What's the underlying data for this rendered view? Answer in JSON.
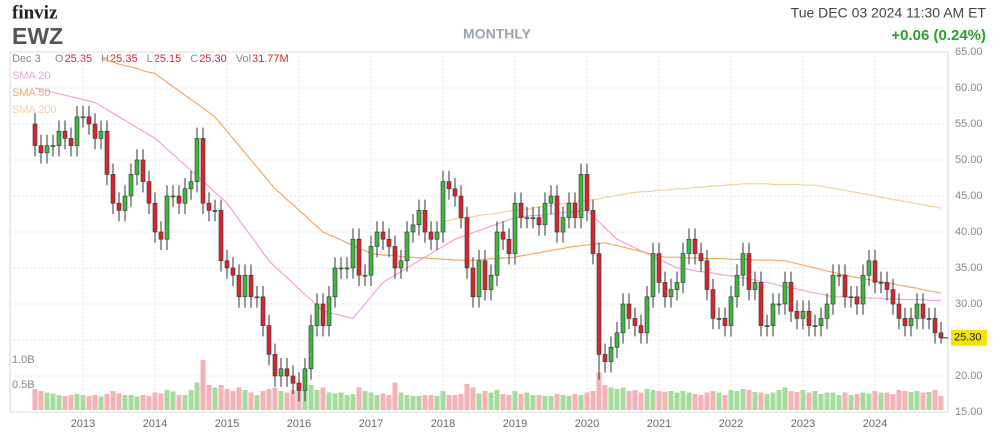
{
  "chart_data": {
    "type": "candlestick",
    "brand": "finviz",
    "ticker": "EWZ",
    "timeframe": "MONTHLY",
    "datetime": "Tue DEC 03 2024 11:30 AM ET",
    "change": "+0.06 (0.24%)",
    "quote": {
      "date": "Dec 3",
      "items": [
        {
          "label": "O",
          "value": 25.35
        },
        {
          "label": "H",
          "value": 25.35
        },
        {
          "label": "L",
          "value": 25.15
        },
        {
          "label": "C",
          "value": 25.3,
          "value_label": "25.30"
        },
        {
          "label": "Vol",
          "value": "31.77M"
        }
      ]
    },
    "last_price": {
      "value": 25.3,
      "label": "25.30"
    },
    "up_color": "#3fb63f",
    "down_color": "#d9262d",
    "up_volume_color": "#a6dc9b",
    "down_volume_color": "#f4b1b6",
    "grid": true,
    "categories": [
      null,
      null,
      null,
      null,
      null,
      null,
      null,
      null,
      "2013",
      null,
      null,
      null,
      null,
      null,
      null,
      null,
      null,
      null,
      null,
      null,
      "2014",
      null,
      null,
      null,
      null,
      null,
      null,
      null,
      null,
      null,
      null,
      null,
      "2015",
      null,
      null,
      null,
      null,
      null,
      null,
      null,
      null,
      null,
      null,
      null,
      "2016",
      null,
      null,
      null,
      null,
      null,
      null,
      null,
      null,
      null,
      null,
      null,
      "2017",
      null,
      null,
      null,
      null,
      null,
      null,
      null,
      null,
      null,
      null,
      null,
      "2018",
      null,
      null,
      null,
      null,
      null,
      null,
      null,
      null,
      null,
      null,
      null,
      "2019",
      null,
      null,
      null,
      null,
      null,
      null,
      null,
      null,
      null,
      null,
      null,
      "2020",
      null,
      null,
      null,
      null,
      null,
      null,
      null,
      null,
      null,
      null,
      null,
      "2021",
      null,
      null,
      null,
      null,
      null,
      null,
      null,
      null,
      null,
      null,
      null,
      "2022",
      null,
      null,
      null,
      null,
      null,
      null,
      null,
      null,
      null,
      null,
      null,
      "2023",
      null,
      null,
      null,
      null,
      null,
      null,
      null,
      null,
      null,
      null,
      null,
      "2024",
      null,
      null,
      null,
      null,
      null,
      null,
      null,
      null,
      null,
      null,
      null
    ],
    "open": [
      55,
      52,
      51,
      52,
      52,
      54,
      53,
      52,
      56,
      56,
      55,
      53,
      54,
      48,
      44,
      43,
      45,
      48,
      50,
      47,
      44,
      40,
      39,
      45,
      45,
      44,
      46,
      47,
      53,
      44,
      43,
      43,
      36,
      35,
      34,
      31,
      34,
      31,
      31,
      27,
      23,
      20,
      21,
      20,
      19,
      18,
      21,
      27,
      30,
      27,
      31,
      35,
      35,
      35,
      39,
      34,
      34,
      38,
      40,
      39,
      38,
      35,
      36,
      40,
      41,
      43,
      40,
      39,
      40,
      47,
      46,
      45,
      42,
      35,
      31,
      36,
      32,
      34,
      40,
      39,
      37,
      44,
      42,
      42,
      42,
      41,
      44,
      45,
      40,
      42,
      44,
      42,
      48,
      43,
      37,
      23,
      22,
      24,
      26,
      30,
      28,
      27,
      26,
      31,
      37,
      33,
      31,
      32,
      33,
      37,
      39,
      37,
      36,
      32,
      28,
      28,
      27,
      31,
      34,
      37,
      32,
      33,
      27,
      27,
      30,
      30,
      33,
      29,
      28,
      29,
      27,
      27,
      28,
      30,
      34,
      34,
      31,
      31,
      30,
      34,
      36,
      33,
      33,
      32,
      30,
      28,
      27,
      28,
      30,
      28,
      28,
      26
    ],
    "high": [
      56.5,
      53.5,
      53.5,
      53.5,
      55.5,
      55.5,
      54.5,
      57.5,
      57.5,
      57.5,
      56.5,
      55.5,
      55.5,
      49.5,
      45.5,
      46.5,
      49.5,
      51.5,
      51.5,
      48.5,
      45.5,
      41.5,
      46.5,
      46.5,
      46.5,
      47.5,
      48.5,
      54.5,
      54.5,
      45.5,
      44.5,
      44.5,
      37.5,
      36.5,
      35.5,
      35.5,
      35.5,
      32.5,
      32.5,
      28.5,
      24.5,
      22.5,
      22.5,
      21.5,
      20.5,
      22.5,
      28.5,
      31.5,
      31.5,
      32.5,
      36.5,
      36.5,
      36.5,
      40.5,
      40.5,
      35.5,
      39.5,
      41.5,
      41.5,
      40.5,
      39.5,
      37.5,
      41.5,
      42.5,
      44.5,
      44.5,
      41.5,
      41.5,
      48.5,
      48.5,
      47.5,
      46.5,
      43.5,
      36.5,
      37.5,
      37.5,
      35.5,
      41.5,
      41.5,
      40.5,
      45.5,
      45.5,
      43.5,
      43.5,
      43.5,
      45.5,
      46.5,
      46.5,
      43.5,
      45.5,
      45.5,
      49.5,
      49.5,
      44.5,
      38.5,
      24.5,
      25.5,
      27.5,
      31.5,
      31.5,
      29.5,
      28.5,
      32.5,
      38.5,
      38.5,
      34.5,
      33.5,
      34.5,
      38.5,
      40.5,
      40.5,
      38.5,
      37.5,
      33.5,
      29.5,
      29.5,
      32.5,
      35.5,
      38.5,
      38.5,
      34.5,
      34.5,
      28.5,
      31.5,
      31.5,
      34.5,
      34.5,
      30.5,
      30.5,
      30.5,
      28.5,
      29.5,
      31.5,
      35.5,
      35.5,
      35.5,
      32.5,
      32.5,
      35.5,
      37.5,
      37.5,
      34.5,
      34.5,
      33.5,
      31.5,
      29.5,
      29.5,
      31.5,
      31.5,
      29.5,
      29.5,
      27.5
    ],
    "low": [
      50.5,
      49.5,
      49.5,
      50.5,
      50.5,
      51.5,
      50.5,
      50.5,
      54.5,
      53.5,
      51.5,
      51.5,
      46.5,
      42.5,
      41.5,
      41.5,
      43.5,
      46.5,
      45.5,
      42.5,
      38.5,
      37.5,
      37.5,
      43.5,
      42.5,
      42.5,
      44.5,
      45.5,
      42.5,
      41.5,
      41.5,
      34.5,
      33.5,
      32.5,
      29.5,
      29.5,
      29.5,
      29.5,
      25.5,
      21.5,
      18.5,
      18.5,
      18.5,
      17.5,
      16.5,
      16.5,
      19.5,
      25.5,
      25.5,
      25.5,
      29.5,
      33.5,
      33.5,
      33.5,
      32.5,
      32.5,
      32.5,
      36.5,
      37.5,
      36.5,
      33.5,
      33.5,
      34.5,
      38.5,
      39.5,
      38.5,
      37.5,
      37.5,
      38.5,
      44.5,
      43.5,
      40.5,
      33.5,
      29.5,
      29.5,
      30.5,
      30.5,
      32.5,
      37.5,
      35.5,
      35.5,
      40.5,
      40.5,
      40.5,
      39.5,
      39.5,
      42.5,
      38.5,
      38.5,
      40.5,
      40.5,
      40.5,
      41.5,
      35.5,
      19.5,
      20.5,
      20.5,
      22.5,
      24.5,
      26.5,
      25.5,
      24.5,
      24.5,
      29.5,
      31.5,
      29.5,
      29.5,
      30.5,
      31.5,
      35.5,
      35.5,
      34.5,
      30.5,
      26.5,
      26.5,
      25.5,
      25.5,
      29.5,
      32.5,
      30.5,
      30.5,
      25.5,
      25.5,
      25.5,
      28.5,
      28.5,
      27.5,
      26.5,
      26.5,
      25.5,
      25.5,
      25.5,
      26.5,
      28.5,
      32.5,
      29.5,
      29.5,
      28.5,
      28.5,
      32.5,
      31.5,
      31.5,
      30.5,
      28.5,
      26.5,
      25.5,
      25.5,
      26.5,
      26.5,
      26.5,
      24.5,
      24.5
    ],
    "close": [
      52,
      51,
      52,
      52,
      54,
      53,
      52,
      56,
      56,
      55,
      53,
      54,
      48,
      44,
      43,
      45,
      48,
      50,
      47,
      44,
      40,
      39,
      45,
      45,
      44,
      46,
      47,
      53,
      44,
      43,
      43,
      36,
      35,
      34,
      31,
      34,
      31,
      31,
      27,
      23,
      20,
      21,
      20,
      19,
      18,
      21,
      27,
      30,
      27,
      31,
      35,
      35,
      35,
      39,
      34,
      34,
      38,
      40,
      39,
      38,
      35,
      36,
      40,
      41,
      43,
      40,
      39,
      40,
      47,
      46,
      45,
      42,
      35,
      31,
      36,
      32,
      34,
      40,
      39,
      37,
      44,
      42,
      42,
      42,
      41,
      44,
      45,
      40,
      42,
      44,
      42,
      48,
      43,
      37,
      23,
      22,
      24,
      26,
      30,
      28,
      27,
      26,
      31,
      37,
      33,
      31,
      32,
      33,
      37,
      39,
      37,
      36,
      32,
      28,
      28,
      27,
      31,
      34,
      37,
      32,
      33,
      27,
      27,
      30,
      30,
      33,
      29,
      28,
      29,
      27,
      27,
      28,
      30,
      34,
      34,
      31,
      31,
      30,
      34,
      36,
      33,
      33,
      32,
      30,
      28,
      27,
      28,
      30,
      28,
      28,
      26,
      25.3
    ],
    "volume": [
      0.42,
      0.38,
      0.35,
      0.33,
      0.3,
      0.28,
      0.3,
      0.32,
      0.3,
      0.28,
      0.3,
      0.27,
      0.32,
      0.38,
      0.33,
      0.3,
      0.3,
      0.27,
      0.3,
      0.28,
      0.35,
      0.33,
      0.4,
      0.37,
      0.3,
      0.3,
      0.4,
      0.55,
      1.0,
      0.5,
      0.45,
      0.5,
      0.42,
      0.38,
      0.45,
      0.4,
      0.35,
      0.3,
      0.38,
      0.42,
      0.45,
      0.38,
      0.35,
      0.4,
      0.55,
      0.45,
      0.5,
      0.4,
      0.45,
      0.35,
      0.33,
      0.35,
      0.3,
      0.32,
      0.45,
      0.38,
      0.35,
      0.3,
      0.33,
      0.3,
      0.55,
      0.35,
      0.3,
      0.28,
      0.28,
      0.3,
      0.3,
      0.28,
      0.38,
      0.3,
      0.3,
      0.32,
      0.52,
      0.45,
      0.33,
      0.38,
      0.35,
      0.4,
      0.32,
      0.3,
      0.38,
      0.32,
      0.35,
      0.3,
      0.3,
      0.28,
      0.28,
      0.32,
      0.3,
      0.28,
      0.32,
      0.3,
      0.35,
      0.38,
      0.75,
      0.5,
      0.45,
      0.42,
      0.45,
      0.38,
      0.4,
      0.35,
      0.42,
      0.4,
      0.38,
      0.36,
      0.38,
      0.35,
      0.38,
      0.35,
      0.32,
      0.3,
      0.35,
      0.38,
      0.35,
      0.3,
      0.4,
      0.38,
      0.42,
      0.4,
      0.36,
      0.35,
      0.32,
      0.35,
      0.4,
      0.45,
      0.38,
      0.36,
      0.4,
      0.35,
      0.38,
      0.32,
      0.35,
      0.35,
      0.3,
      0.35,
      0.3,
      0.32,
      0.35,
      0.33,
      0.38,
      0.35,
      0.35,
      0.32,
      0.4,
      0.38,
      0.36,
      0.38,
      0.35,
      0.36,
      0.4,
      0.28
    ],
    "vlim": [
      0,
      1.0
    ],
    "vticks": [
      {
        "value": 0.5,
        "label": "0.5B"
      },
      {
        "value": 1.0,
        "label": "1.0B"
      }
    ],
    "ylim": [
      15,
      65
    ],
    "yticks": [
      {
        "value": 15,
        "label": "15.00"
      },
      {
        "value": 20,
        "label": "20.00"
      },
      {
        "value": 25,
        "label": "25.00"
      },
      {
        "value": 30,
        "label": "30.00"
      },
      {
        "value": 35,
        "label": "35.00"
      },
      {
        "value": 40,
        "label": "40.00"
      },
      {
        "value": 45,
        "label": "45.00"
      },
      {
        "value": 50,
        "label": "50.00"
      },
      {
        "value": 55,
        "label": "55.00"
      },
      {
        "value": 60,
        "label": "60.00"
      },
      {
        "value": 65,
        "label": "65.00"
      }
    ],
    "series": [
      {
        "name": "SMA 20",
        "color": "#f0a3dc",
        "values": [
          60,
          59.8,
          59.6,
          59.4,
          59.2,
          59,
          58.8,
          58.6,
          58.4,
          58.2,
          58,
          57.5,
          57,
          56.5,
          56,
          55.5,
          55,
          54.5,
          54,
          53.5,
          53,
          52.3,
          51.5,
          50.8,
          50,
          49.3,
          48.5,
          47.8,
          47,
          46.3,
          45.5,
          44.8,
          44,
          42.9,
          41.7,
          40.6,
          39.4,
          38.3,
          37.1,
          36,
          35.2,
          34.4,
          33.7,
          32.9,
          32.1,
          31.3,
          30.6,
          29.8,
          29,
          28.8,
          28.6,
          28.4,
          28.2,
          28,
          29,
          30,
          31,
          32,
          33,
          33.5,
          34,
          34.5,
          35,
          35.5,
          36,
          36.5,
          37,
          37.5,
          38,
          38.5,
          39,
          39.3,
          39.6,
          39.9,
          40.2,
          40.5,
          40.8,
          41.1,
          41.4,
          41.7,
          42,
          42.1,
          42.2,
          42.3,
          42.3,
          42.4,
          42.5,
          42.6,
          42.7,
          42.8,
          42.8,
          42.9,
          43,
          42.2,
          41.4,
          40.6,
          39.8,
          39,
          38.6,
          38.2,
          37.8,
          37.4,
          37,
          36.6,
          36.2,
          35.8,
          35.4,
          35,
          34.9,
          34.8,
          34.6,
          34.5,
          34.4,
          34.3,
          34.1,
          34,
          33.9,
          33.8,
          33.6,
          33.5,
          33.3,
          33.1,
          33,
          32.8,
          32.6,
          32.4,
          32.2,
          32.1,
          31.9,
          31.7,
          31.5,
          31.4,
          31.2,
          31,
          31,
          31,
          30.9,
          30.9,
          30.9,
          30.8,
          30.8,
          30.8,
          30.7,
          30.7,
          30.7,
          30.6,
          30.6,
          30.6,
          30.6,
          30.5,
          30.5,
          30.5
        ]
      },
      {
        "name": "SMA 50",
        "color": "#f2a867",
        "values": [
          null,
          null,
          null,
          null,
          null,
          null,
          null,
          null,
          null,
          null,
          null,
          64,
          63.8,
          63.6,
          63.3,
          63.1,
          62.9,
          62.7,
          62.4,
          62.2,
          62,
          61.4,
          60.8,
          60.2,
          59.6,
          59,
          58.4,
          57.8,
          57.2,
          56.6,
          56,
          55,
          54,
          53,
          52,
          51,
          50,
          49,
          48,
          47,
          46,
          45.3,
          44.5,
          43.8,
          43,
          42.3,
          41.5,
          40.8,
          40,
          39.6,
          39.3,
          38.9,
          38.5,
          38.1,
          37.8,
          37.4,
          37,
          36.9,
          36.8,
          36.8,
          36.7,
          36.6,
          36.5,
          36.5,
          36.4,
          36.4,
          36.3,
          36.3,
          36.2,
          36.2,
          36.1,
          36.1,
          36,
          36.1,
          36.1,
          36.2,
          36.3,
          36.3,
          36.4,
          36.4,
          36.5,
          36.7,
          36.8,
          37,
          37.1,
          37.3,
          37.4,
          37.6,
          37.7,
          37.9,
          38,
          38.1,
          38.2,
          38.3,
          38.4,
          38.5,
          38.3,
          38.1,
          37.9,
          37.7,
          37.5,
          37.3,
          37.1,
          36.9,
          36.7,
          36.5,
          36.5,
          36.5,
          36.4,
          36.4,
          36.4,
          36.4,
          36.3,
          36.3,
          36.3,
          36.3,
          36.2,
          36.2,
          36.2,
          36.2,
          36.1,
          36.1,
          36.1,
          36.1,
          36,
          36,
          35.8,
          35.6,
          35.4,
          35.2,
          35,
          34.8,
          34.6,
          34.4,
          34.2,
          34,
          33.8,
          33.7,
          33.5,
          33.4,
          33.2,
          33.1,
          32.9,
          32.8,
          32.6,
          32.5,
          32.3,
          32.2,
          32,
          31.8,
          31.7,
          31.5
        ]
      },
      {
        "name": "SMA 200",
        "color": "#f5d29a",
        "values": [
          null,
          null,
          null,
          null,
          null,
          null,
          null,
          null,
          null,
          null,
          null,
          null,
          null,
          null,
          null,
          null,
          null,
          null,
          null,
          null,
          null,
          null,
          null,
          null,
          null,
          null,
          null,
          null,
          null,
          null,
          null,
          null,
          null,
          null,
          null,
          null,
          null,
          null,
          null,
          null,
          null,
          null,
          null,
          null,
          null,
          null,
          null,
          null,
          null,
          null,
          null,
          null,
          null,
          null,
          null,
          null,
          null,
          null,
          null,
          null,
          null,
          null,
          null,
          null,
          null,
          null,
          null,
          null,
          41.5,
          41.6,
          41.8,
          41.9,
          42,
          42.1,
          42.3,
          42.4,
          42.5,
          42.6,
          42.8,
          42.9,
          43,
          43.1,
          43.2,
          43.3,
          43.5,
          43.6,
          43.7,
          43.8,
          43.9,
          44,
          44.2,
          44.3,
          44.4,
          44.5,
          44.6,
          44.8,
          44.9,
          45.1,
          45.2,
          45.4,
          45.5,
          45.6,
          45.6,
          45.7,
          45.8,
          45.8,
          45.9,
          46,
          46,
          46.1,
          46.2,
          46.2,
          46.3,
          46.4,
          46.4,
          46.5,
          46.6,
          46.6,
          46.7,
          46.7,
          46.7,
          46.7,
          46.7,
          46.6,
          46.6,
          46.6,
          46.6,
          46.6,
          46.5,
          46.5,
          46.5,
          46.4,
          46.2,
          46.1,
          45.9,
          45.8,
          45.6,
          45.5,
          45.3,
          45.2,
          45,
          44.8,
          44.7,
          44.5,
          44.4,
          44.2,
          44.1,
          43.9,
          43.8,
          43.6,
          43.5,
          43.3
        ]
      }
    ]
  }
}
